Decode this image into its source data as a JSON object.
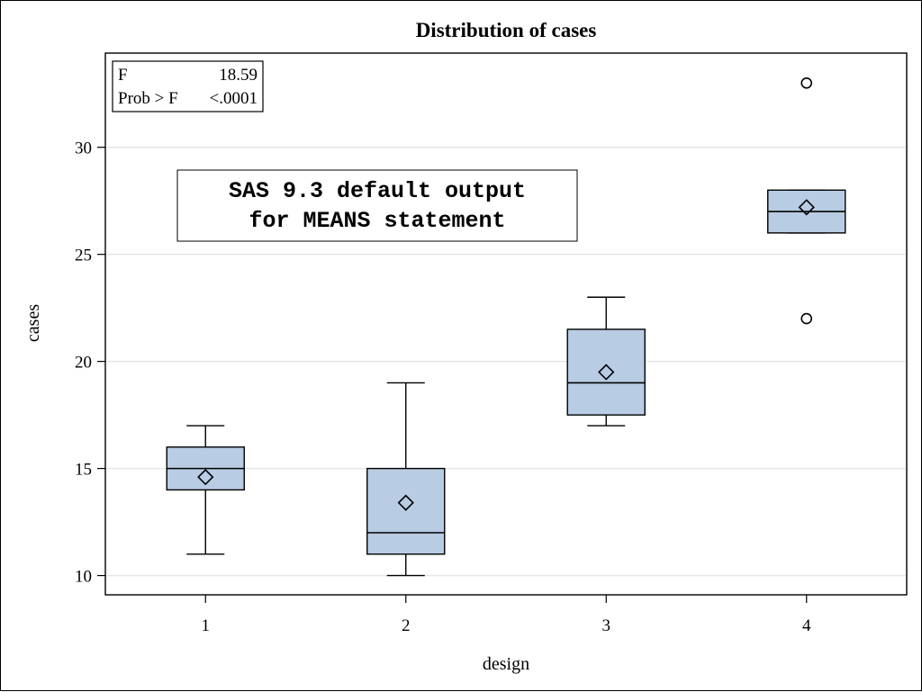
{
  "chart_data": {
    "type": "box",
    "title": "Distribution of cases",
    "xlabel": "design",
    "ylabel": "cases",
    "categories": [
      "1",
      "2",
      "3",
      "4"
    ],
    "ylim": [
      9.1,
      34.4
    ],
    "yticks": [
      10,
      15,
      20,
      25,
      30
    ],
    "grid": true,
    "boxes": [
      {
        "category": "1",
        "whisker_low": 11,
        "q1": 14,
        "median": 15,
        "q3": 16,
        "whisker_high": 17,
        "mean": 14.6,
        "outliers": []
      },
      {
        "category": "2",
        "whisker_low": 10,
        "q1": 11,
        "median": 12,
        "q3": 15,
        "whisker_high": 19,
        "mean": 13.4,
        "outliers": []
      },
      {
        "category": "3",
        "whisker_low": 17,
        "q1": 17.5,
        "median": 19,
        "q3": 21.5,
        "whisker_high": 23,
        "mean": 19.5,
        "outliers": []
      },
      {
        "category": "4",
        "whisker_low": 26,
        "q1": 26,
        "median": 27,
        "q3": 28,
        "whisker_high": 28,
        "mean": 27.2,
        "outliers": [
          22,
          33
        ]
      }
    ],
    "stats_inset": {
      "rows": [
        {
          "label": "F",
          "value": "18.59"
        },
        {
          "label": "Prob > F",
          "value": "<.0001"
        }
      ]
    },
    "annotation": [
      "SAS 9.3 default output",
      "for MEANS statement"
    ],
    "colors": {
      "box_fill": "#b8cce4",
      "stroke": "#000000",
      "grid": "#e6e6e6"
    }
  }
}
